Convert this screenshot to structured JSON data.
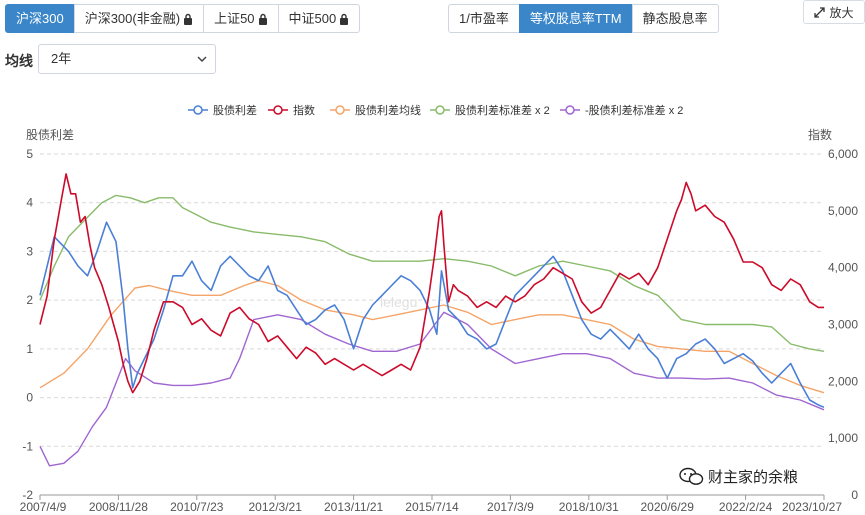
{
  "tabs_left": [
    {
      "label": "沪深300",
      "active": true,
      "locked": false
    },
    {
      "label": "沪深300(非金融)",
      "active": false,
      "locked": true
    },
    {
      "label": "上证50",
      "active": false,
      "locked": true
    },
    {
      "label": "中证500",
      "active": false,
      "locked": true
    }
  ],
  "tabs_right": [
    {
      "label": "1/市盈率",
      "active": false
    },
    {
      "label": "等权股息率TTM",
      "active": true
    },
    {
      "label": "静态股息率",
      "active": false
    }
  ],
  "zoom_label": "放大",
  "ma": {
    "label": "均线",
    "selected": "2年"
  },
  "watermark": {
    "text": "财主家的余粮",
    "center_text": "lelegu"
  },
  "colors": {
    "spread": "#4a7fd6",
    "index": "#cc0a2a",
    "ma": "#f5a468",
    "upper": "#88bb6a",
    "lower": "#a066d0",
    "grid": "#d9d9d9",
    "active_tab": "#3a86c8"
  },
  "chart_data": {
    "type": "line",
    "left_axis_title": "股债利差",
    "right_axis_title": "指数",
    "left_ylim": [
      -2,
      5
    ],
    "right_ylim": [
      0,
      6000
    ],
    "left_ticks": [
      "5",
      "4",
      "3",
      "2",
      "1",
      "0",
      "-1",
      "-2"
    ],
    "right_ticks": [
      "6,000",
      "5,000",
      "4,000",
      "3,000",
      "2,000",
      "1,000",
      "0"
    ],
    "x_labels": [
      "2007/4/9",
      "2008/11/28",
      "2010/7/23",
      "2012/3/21",
      "2013/11/21",
      "2015/7/14",
      "2017/3/9",
      "2018/10/31",
      "2020/6/29",
      "2022/2/24",
      "2023/10/27"
    ],
    "grid": "horizontal dashed",
    "legend_position": "top-center",
    "series": [
      {
        "name": "股债利差",
        "axis": "left",
        "color_key": "spread",
        "points": [
          [
            0,
            2.1
          ],
          [
            0.3,
            3.3
          ],
          [
            0.6,
            3.0
          ],
          [
            0.8,
            2.7
          ],
          [
            1.0,
            2.5
          ],
          [
            1.2,
            3.0
          ],
          [
            1.4,
            3.6
          ],
          [
            1.6,
            3.2
          ],
          [
            1.75,
            2.0
          ],
          [
            1.85,
            1.0
          ],
          [
            1.95,
            0.2
          ],
          [
            2.05,
            0.5
          ],
          [
            2.2,
            0.8
          ],
          [
            2.4,
            1.2
          ],
          [
            2.6,
            1.8
          ],
          [
            2.8,
            2.5
          ],
          [
            3.0,
            2.5
          ],
          [
            3.2,
            2.8
          ],
          [
            3.4,
            2.4
          ],
          [
            3.6,
            2.2
          ],
          [
            3.8,
            2.7
          ],
          [
            4.0,
            2.9
          ],
          [
            4.2,
            2.7
          ],
          [
            4.4,
            2.5
          ],
          [
            4.6,
            2.4
          ],
          [
            4.8,
            2.7
          ],
          [
            5.0,
            2.2
          ],
          [
            5.2,
            2.1
          ],
          [
            5.4,
            1.8
          ],
          [
            5.6,
            1.5
          ],
          [
            5.8,
            1.6
          ],
          [
            6.0,
            1.8
          ],
          [
            6.2,
            1.9
          ],
          [
            6.4,
            1.6
          ],
          [
            6.6,
            1.0
          ],
          [
            6.8,
            1.6
          ],
          [
            7.0,
            1.9
          ],
          [
            7.2,
            2.1
          ],
          [
            7.4,
            2.3
          ],
          [
            7.6,
            2.5
          ],
          [
            7.8,
            2.4
          ],
          [
            8.0,
            2.2
          ],
          [
            8.2,
            1.8
          ],
          [
            8.35,
            1.3
          ],
          [
            8.45,
            2.6
          ],
          [
            8.6,
            1.8
          ],
          [
            8.8,
            1.6
          ],
          [
            9.0,
            1.3
          ],
          [
            9.2,
            1.2
          ],
          [
            9.4,
            1.0
          ],
          [
            9.6,
            1.1
          ],
          [
            9.8,
            1.6
          ],
          [
            10.0,
            2.1
          ],
          [
            10.2,
            2.3
          ],
          [
            10.4,
            2.5
          ],
          [
            10.6,
            2.7
          ],
          [
            10.8,
            2.9
          ],
          [
            11.0,
            2.6
          ],
          [
            11.2,
            2.1
          ],
          [
            11.4,
            1.6
          ],
          [
            11.6,
            1.3
          ],
          [
            11.8,
            1.2
          ],
          [
            12.0,
            1.4
          ],
          [
            12.2,
            1.2
          ],
          [
            12.4,
            1.0
          ],
          [
            12.6,
            1.3
          ],
          [
            12.8,
            1.0
          ],
          [
            13.0,
            0.8
          ],
          [
            13.2,
            0.4
          ],
          [
            13.4,
            0.8
          ],
          [
            13.6,
            0.9
          ],
          [
            13.8,
            1.1
          ],
          [
            14.0,
            1.2
          ],
          [
            14.2,
            1.0
          ],
          [
            14.4,
            0.7
          ],
          [
            14.6,
            0.8
          ],
          [
            14.8,
            0.9
          ],
          [
            15.0,
            0.75
          ],
          [
            15.2,
            0.5
          ],
          [
            15.4,
            0.3
          ],
          [
            15.6,
            0.5
          ],
          [
            15.8,
            0.7
          ],
          [
            16.0,
            0.3
          ],
          [
            16.2,
            -0.05
          ],
          [
            16.38,
            -0.15
          ],
          [
            16.5,
            -0.2
          ]
        ]
      },
      {
        "name": "指数",
        "axis": "right",
        "color_key": "index",
        "points": [
          [
            0,
            3000
          ],
          [
            0.15,
            3500
          ],
          [
            0.3,
            4500
          ],
          [
            0.45,
            5200
          ],
          [
            0.55,
            5650
          ],
          [
            0.65,
            5300
          ],
          [
            0.75,
            5300
          ],
          [
            0.85,
            4800
          ],
          [
            0.95,
            4900
          ],
          [
            1.05,
            4400
          ],
          [
            1.15,
            4000
          ],
          [
            1.3,
            3700
          ],
          [
            1.45,
            3300
          ],
          [
            1.55,
            3000
          ],
          [
            1.65,
            2700
          ],
          [
            1.75,
            2300
          ],
          [
            1.85,
            2000
          ],
          [
            1.95,
            1800
          ],
          [
            2.1,
            2000
          ],
          [
            2.25,
            2400
          ],
          [
            2.4,
            2900
          ],
          [
            2.6,
            3400
          ],
          [
            2.8,
            3400
          ],
          [
            3.0,
            3300
          ],
          [
            3.2,
            3000
          ],
          [
            3.4,
            3100
          ],
          [
            3.6,
            2900
          ],
          [
            3.8,
            2800
          ],
          [
            4.0,
            3200
          ],
          [
            4.2,
            3300
          ],
          [
            4.4,
            3100
          ],
          [
            4.6,
            3000
          ],
          [
            4.8,
            2700
          ],
          [
            5.0,
            2800
          ],
          [
            5.2,
            2600
          ],
          [
            5.4,
            2400
          ],
          [
            5.6,
            2600
          ],
          [
            5.8,
            2500
          ],
          [
            6.0,
            2300
          ],
          [
            6.2,
            2400
          ],
          [
            6.4,
            2300
          ],
          [
            6.6,
            2200
          ],
          [
            6.8,
            2300
          ],
          [
            7.0,
            2200
          ],
          [
            7.2,
            2100
          ],
          [
            7.4,
            2200
          ],
          [
            7.6,
            2300
          ],
          [
            7.8,
            2200
          ],
          [
            8.0,
            2600
          ],
          [
            8.2,
            3600
          ],
          [
            8.3,
            4200
          ],
          [
            8.4,
            4900
          ],
          [
            8.45,
            5000
          ],
          [
            8.5,
            4400
          ],
          [
            8.6,
            3400
          ],
          [
            8.7,
            3700
          ],
          [
            8.8,
            3600
          ],
          [
            9.0,
            3500
          ],
          [
            9.2,
            3300
          ],
          [
            9.4,
            3400
          ],
          [
            9.6,
            3300
          ],
          [
            9.8,
            3500
          ],
          [
            10.0,
            3400
          ],
          [
            10.2,
            3500
          ],
          [
            10.4,
            3700
          ],
          [
            10.6,
            3800
          ],
          [
            10.8,
            4000
          ],
          [
            11.0,
            3900
          ],
          [
            11.2,
            3800
          ],
          [
            11.4,
            3400
          ],
          [
            11.6,
            3200
          ],
          [
            11.8,
            3300
          ],
          [
            12.0,
            3600
          ],
          [
            12.2,
            3900
          ],
          [
            12.4,
            3800
          ],
          [
            12.6,
            3900
          ],
          [
            12.8,
            3700
          ],
          [
            13.0,
            4000
          ],
          [
            13.2,
            4500
          ],
          [
            13.4,
            5000
          ],
          [
            13.5,
            5200
          ],
          [
            13.6,
            5500
          ],
          [
            13.7,
            5300
          ],
          [
            13.8,
            5000
          ],
          [
            14.0,
            5100
          ],
          [
            14.2,
            4900
          ],
          [
            14.4,
            4800
          ],
          [
            14.6,
            4500
          ],
          [
            14.8,
            4100
          ],
          [
            15.0,
            4100
          ],
          [
            15.2,
            4000
          ],
          [
            15.4,
            3700
          ],
          [
            15.6,
            3600
          ],
          [
            15.8,
            3800
          ],
          [
            16.0,
            3700
          ],
          [
            16.2,
            3400
          ],
          [
            16.38,
            3300
          ],
          [
            16.5,
            3300
          ]
        ]
      },
      {
        "name": "股债利差均线",
        "axis": "left",
        "color_key": "ma",
        "points": [
          [
            0,
            0.2
          ],
          [
            0.5,
            0.5
          ],
          [
            1.0,
            1.0
          ],
          [
            1.5,
            1.7
          ],
          [
            2.0,
            2.25
          ],
          [
            2.3,
            2.3
          ],
          [
            2.7,
            2.2
          ],
          [
            3.2,
            2.1
          ],
          [
            3.8,
            2.1
          ],
          [
            4.3,
            2.3
          ],
          [
            4.6,
            2.4
          ],
          [
            5.0,
            2.3
          ],
          [
            5.5,
            2.0
          ],
          [
            6.0,
            1.8
          ],
          [
            6.6,
            1.7
          ],
          [
            7.0,
            1.6
          ],
          [
            7.5,
            1.7
          ],
          [
            8.0,
            1.8
          ],
          [
            8.5,
            1.9
          ],
          [
            9.0,
            1.75
          ],
          [
            9.5,
            1.5
          ],
          [
            10.0,
            1.6
          ],
          [
            10.5,
            1.7
          ],
          [
            11.0,
            1.7
          ],
          [
            11.5,
            1.6
          ],
          [
            12.0,
            1.5
          ],
          [
            12.5,
            1.2
          ],
          [
            13.0,
            1.05
          ],
          [
            13.5,
            1.0
          ],
          [
            14.0,
            0.95
          ],
          [
            14.5,
            0.95
          ],
          [
            15.0,
            0.7
          ],
          [
            15.5,
            0.45
          ],
          [
            16.0,
            0.25
          ],
          [
            16.5,
            0.1
          ]
        ]
      },
      {
        "name": "股债利差标准差 x 2",
        "axis": "left",
        "color_key": "upper",
        "points": [
          [
            0,
            2.0
          ],
          [
            0.3,
            2.7
          ],
          [
            0.6,
            3.3
          ],
          [
            1.0,
            3.7
          ],
          [
            1.3,
            4.0
          ],
          [
            1.6,
            4.15
          ],
          [
            1.9,
            4.1
          ],
          [
            2.2,
            4.0
          ],
          [
            2.5,
            4.1
          ],
          [
            2.8,
            4.1
          ],
          [
            3.0,
            3.9
          ],
          [
            3.3,
            3.75
          ],
          [
            3.6,
            3.6
          ],
          [
            4.0,
            3.5
          ],
          [
            4.5,
            3.4
          ],
          [
            5.0,
            3.35
          ],
          [
            5.5,
            3.3
          ],
          [
            6.0,
            3.2
          ],
          [
            6.5,
            2.95
          ],
          [
            7.0,
            2.8
          ],
          [
            7.5,
            2.8
          ],
          [
            8.0,
            2.8
          ],
          [
            8.5,
            2.85
          ],
          [
            9.0,
            2.8
          ],
          [
            9.5,
            2.7
          ],
          [
            10.0,
            2.5
          ],
          [
            10.5,
            2.7
          ],
          [
            11.0,
            2.8
          ],
          [
            11.5,
            2.7
          ],
          [
            12.0,
            2.6
          ],
          [
            12.5,
            2.3
          ],
          [
            13.0,
            2.1
          ],
          [
            13.5,
            1.6
          ],
          [
            14.0,
            1.5
          ],
          [
            14.5,
            1.5
          ],
          [
            15.0,
            1.5
          ],
          [
            15.4,
            1.45
          ],
          [
            15.8,
            1.1
          ],
          [
            16.2,
            1.0
          ],
          [
            16.5,
            0.95
          ]
        ]
      },
      {
        "name": "-股债利差标准差 x 2",
        "axis": "left",
        "color_key": "lower",
        "points": [
          [
            0,
            -1.0
          ],
          [
            0.2,
            -1.4
          ],
          [
            0.5,
            -1.35
          ],
          [
            0.8,
            -1.1
          ],
          [
            1.1,
            -0.6
          ],
          [
            1.4,
            -0.2
          ],
          [
            1.6,
            0.3
          ],
          [
            1.8,
            0.8
          ],
          [
            2.0,
            0.55
          ],
          [
            2.4,
            0.3
          ],
          [
            2.8,
            0.25
          ],
          [
            3.2,
            0.25
          ],
          [
            3.6,
            0.3
          ],
          [
            4.0,
            0.4
          ],
          [
            4.2,
            0.8
          ],
          [
            4.5,
            1.6
          ],
          [
            5.0,
            1.7
          ],
          [
            5.5,
            1.6
          ],
          [
            6.0,
            1.3
          ],
          [
            6.5,
            1.1
          ],
          [
            7.0,
            0.95
          ],
          [
            7.5,
            0.95
          ],
          [
            8.0,
            1.1
          ],
          [
            8.5,
            1.75
          ],
          [
            9.0,
            1.5
          ],
          [
            9.5,
            1.0
          ],
          [
            10.0,
            0.7
          ],
          [
            10.5,
            0.8
          ],
          [
            11.0,
            0.9
          ],
          [
            11.5,
            0.9
          ],
          [
            12.0,
            0.8
          ],
          [
            12.5,
            0.5
          ],
          [
            13.0,
            0.4
          ],
          [
            13.5,
            0.4
          ],
          [
            14.0,
            0.38
          ],
          [
            14.5,
            0.4
          ],
          [
            15.0,
            0.3
          ],
          [
            15.5,
            0.05
          ],
          [
            16.0,
            -0.05
          ],
          [
            16.5,
            -0.25
          ]
        ]
      }
    ]
  }
}
